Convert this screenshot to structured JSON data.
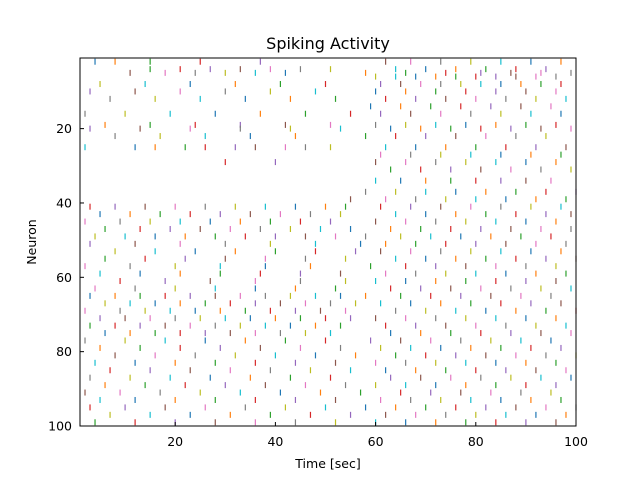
{
  "chart_data": {
    "type": "scatter",
    "title": "Spiking Activity",
    "xlabel": "Time [sec]",
    "ylabel": "Neuron",
    "xlim": [
      1,
      100
    ],
    "ylim": [
      100,
      1
    ],
    "y_inverted": true,
    "xticks": [
      20,
      40,
      60,
      80,
      100
    ],
    "yticks": [
      20,
      40,
      60,
      80,
      100
    ],
    "grid": false,
    "legend": "none",
    "marker": "vertical-line",
    "colors": [
      "#1f77b4",
      "#ff7f0e",
      "#2ca02c",
      "#d62728",
      "#9467bd",
      "#8c564b",
      "#e377c2",
      "#7f7f7f",
      "#bcbd22",
      "#17becf"
    ],
    "regime_change_time": 57,
    "spikes": [
      {
        "neuron": 2,
        "times": [
          4,
          8,
          15,
          25,
          37,
          62,
          67,
          73,
          79,
          85,
          91,
          97
        ]
      },
      {
        "neuron": 4,
        "times": [
          15,
          21,
          27,
          33,
          39,
          45,
          51,
          64,
          70,
          76,
          82,
          88,
          94
        ]
      },
      {
        "neuron": 5,
        "times": [
          11,
          18,
          24,
          30,
          36,
          42,
          58,
          66,
          74,
          81,
          87,
          93,
          99
        ]
      },
      {
        "neuron": 6,
        "times": [
          60,
          64,
          68,
          72,
          76,
          80,
          84,
          88,
          92,
          96
        ]
      },
      {
        "neuron": 8,
        "times": [
          5,
          14,
          23,
          32,
          41,
          50,
          61,
          65,
          69,
          73,
          77,
          81,
          85,
          89,
          93,
          97
        ]
      },
      {
        "neuron": 10,
        "times": [
          3,
          12,
          21,
          30,
          39,
          48,
          60,
          66,
          72,
          78,
          84,
          90,
          96
        ]
      },
      {
        "neuron": 12,
        "times": [
          7,
          16,
          25,
          34,
          43,
          52,
          62,
          68,
          74,
          80,
          86,
          92,
          98
        ]
      },
      {
        "neuron": 14,
        "times": [
          59,
          65,
          71,
          77,
          83,
          89,
          95
        ]
      },
      {
        "neuron": 16,
        "times": [
          2,
          10,
          19,
          28,
          37,
          46,
          55,
          61,
          67,
          73,
          79,
          85,
          91,
          97
        ]
      },
      {
        "neuron": 19,
        "times": [
          6,
          15,
          24,
          33,
          42,
          51,
          60,
          66,
          72,
          78,
          84,
          90,
          96
        ]
      },
      {
        "neuron": 20,
        "times": [
          3,
          13,
          23,
          33,
          43,
          53,
          63,
          69,
          75,
          81,
          87,
          93,
          99
        ]
      },
      {
        "neuron": 22,
        "times": [
          8,
          17,
          26,
          35,
          44,
          58,
          64,
          70,
          76,
          82,
          88,
          94
        ]
      },
      {
        "neuron": 25,
        "times": [
          2,
          12,
          16,
          22,
          26,
          32,
          36,
          42,
          46,
          51,
          62,
          68,
          74,
          80,
          86,
          92,
          98
        ]
      },
      {
        "neuron": 27,
        "times": [
          61,
          67,
          73,
          79,
          85,
          91,
          97
        ]
      },
      {
        "neuron": 29,
        "times": [
          30,
          40,
          60,
          66,
          72,
          78,
          84,
          90,
          96
        ]
      },
      {
        "neuron": 31,
        "times": [
          63,
          69,
          75,
          81,
          87,
          93,
          99
        ]
      },
      {
        "neuron": 34,
        "times": [
          60,
          65,
          70,
          75,
          80,
          85,
          90,
          95
        ]
      },
      {
        "neuron": 37,
        "times": [
          58,
          64,
          70,
          76,
          82,
          88,
          94,
          100
        ]
      },
      {
        "neuron": 39,
        "times": [
          55,
          62,
          68,
          74,
          80,
          86,
          92,
          98
        ]
      },
      {
        "neuron": 41,
        "times": [
          3,
          8,
          14,
          20,
          26,
          32,
          38,
          44,
          50,
          54,
          61,
          67,
          73,
          79,
          85,
          91,
          97
        ]
      },
      {
        "neuron": 43,
        "times": [
          5,
          11,
          17,
          23,
          29,
          35,
          41,
          47,
          53,
          64,
          70,
          76,
          82,
          88,
          94,
          99
        ]
      },
      {
        "neuron": 45,
        "times": [
          2,
          9,
          15,
          21,
          27,
          33,
          39,
          45,
          51,
          60,
          66,
          72,
          78,
          84,
          90,
          96
        ]
      },
      {
        "neuron": 47,
        "times": [
          6,
          13,
          19,
          25,
          31,
          37,
          43,
          49,
          55,
          63,
          69,
          75,
          81,
          87,
          93,
          99
        ]
      },
      {
        "neuron": 49,
        "times": [
          4,
          10,
          16,
          22,
          28,
          34,
          40,
          46,
          52,
          58,
          65,
          71,
          77,
          83,
          89,
          95
        ]
      },
      {
        "neuron": 51,
        "times": [
          3,
          12,
          21,
          30,
          39,
          48,
          57,
          62,
          68,
          74,
          80,
          86,
          92,
          98
        ]
      },
      {
        "neuron": 53,
        "times": [
          8,
          16,
          24,
          32,
          40,
          48,
          56,
          61,
          67,
          73,
          79,
          85,
          91,
          97
        ]
      },
      {
        "neuron": 55,
        "times": [
          6,
          14,
          22,
          30,
          38,
          46,
          54,
          64,
          70,
          76,
          82,
          88,
          94,
          100
        ]
      },
      {
        "neuron": 57,
        "times": [
          2,
          11,
          20,
          29,
          38,
          47,
          59,
          66,
          72,
          78,
          84,
          90,
          96
        ]
      },
      {
        "neuron": 59,
        "times": [
          5,
          13,
          21,
          29,
          37,
          45,
          53,
          62,
          68,
          74,
          80,
          86,
          92,
          98
        ]
      },
      {
        "neuron": 61,
        "times": [
          9,
          18,
          27,
          36,
          45,
          54,
          60,
          66,
          72,
          78,
          84,
          90,
          96
        ]
      },
      {
        "neuron": 63,
        "times": [
          4,
          12,
          20,
          28,
          36,
          44,
          52,
          63,
          69,
          75,
          81,
          87,
          93,
          99
        ]
      },
      {
        "neuron": 65,
        "times": [
          3,
          8,
          13,
          18,
          23,
          28,
          33,
          38,
          43,
          48,
          53,
          58,
          65,
          71,
          77,
          83,
          89,
          95
        ]
      },
      {
        "neuron": 67,
        "times": [
          6,
          11,
          16,
          21,
          26,
          31,
          36,
          41,
          46,
          51,
          56,
          61,
          67,
          73,
          79,
          85,
          91,
          97
        ]
      },
      {
        "neuron": 69,
        "times": [
          2,
          9,
          14,
          19,
          24,
          29,
          34,
          39,
          44,
          49,
          54,
          64,
          70,
          76,
          82,
          88,
          94,
          100
        ]
      },
      {
        "neuron": 71,
        "times": [
          5,
          10,
          15,
          20,
          25,
          30,
          35,
          40,
          45,
          50,
          55,
          60,
          66,
          72,
          78,
          84,
          90,
          96
        ]
      },
      {
        "neuron": 73,
        "times": [
          3,
          8,
          13,
          18,
          23,
          28,
          33,
          38,
          43,
          48,
          53,
          62,
          68,
          74,
          80,
          86,
          92,
          98
        ]
      },
      {
        "neuron": 75,
        "times": [
          6,
          11,
          16,
          21,
          26,
          31,
          36,
          41,
          46,
          51,
          63,
          69,
          75,
          81,
          87,
          93,
          99
        ]
      },
      {
        "neuron": 77,
        "times": [
          2,
          10,
          18,
          26,
          34,
          42,
          50,
          59,
          65,
          71,
          77,
          83,
          89,
          95
        ]
      },
      {
        "neuron": 79,
        "times": [
          5,
          13,
          21,
          29,
          37,
          45,
          53,
          61,
          67,
          73,
          79,
          85,
          91,
          97
        ]
      },
      {
        "neuron": 81,
        "times": [
          8,
          16,
          24,
          32,
          40,
          48,
          56,
          64,
          70,
          76,
          82,
          88,
          94,
          100
        ]
      },
      {
        "neuron": 83,
        "times": [
          4,
          12,
          20,
          28,
          36,
          44,
          52,
          60,
          66,
          72,
          78,
          84,
          90,
          96
        ]
      },
      {
        "neuron": 85,
        "times": [
          7,
          15,
          23,
          31,
          39,
          47,
          55,
          62,
          68,
          74,
          80,
          86,
          92,
          98
        ]
      },
      {
        "neuron": 87,
        "times": [
          3,
          11,
          19,
          27,
          35,
          43,
          51,
          63,
          69,
          75,
          81,
          87,
          93,
          99
        ]
      },
      {
        "neuron": 89,
        "times": [
          6,
          14,
          22,
          30,
          38,
          46,
          54,
          60,
          66,
          72,
          78,
          84,
          90,
          96
        ]
      },
      {
        "neuron": 91,
        "times": [
          2,
          9,
          17,
          25,
          33,
          41,
          49,
          57,
          65,
          71,
          77,
          83,
          89,
          95
        ]
      },
      {
        "neuron": 93,
        "times": [
          5,
          12,
          20,
          28,
          36,
          44,
          52,
          61,
          67,
          73,
          79,
          85,
          91,
          97
        ]
      },
      {
        "neuron": 95,
        "times": [
          3,
          10,
          18,
          26,
          34,
          42,
          50,
          58,
          64,
          70,
          76,
          82,
          88,
          94,
          100
        ]
      },
      {
        "neuron": 97,
        "times": [
          7,
          15,
          23,
          31,
          39,
          47,
          55,
          62,
          68,
          74,
          80,
          86,
          92,
          98
        ]
      },
      {
        "neuron": 99,
        "times": [
          4,
          12,
          20,
          28,
          36,
          44,
          52,
          60,
          66,
          72,
          78,
          84,
          90,
          96
        ]
      }
    ]
  }
}
